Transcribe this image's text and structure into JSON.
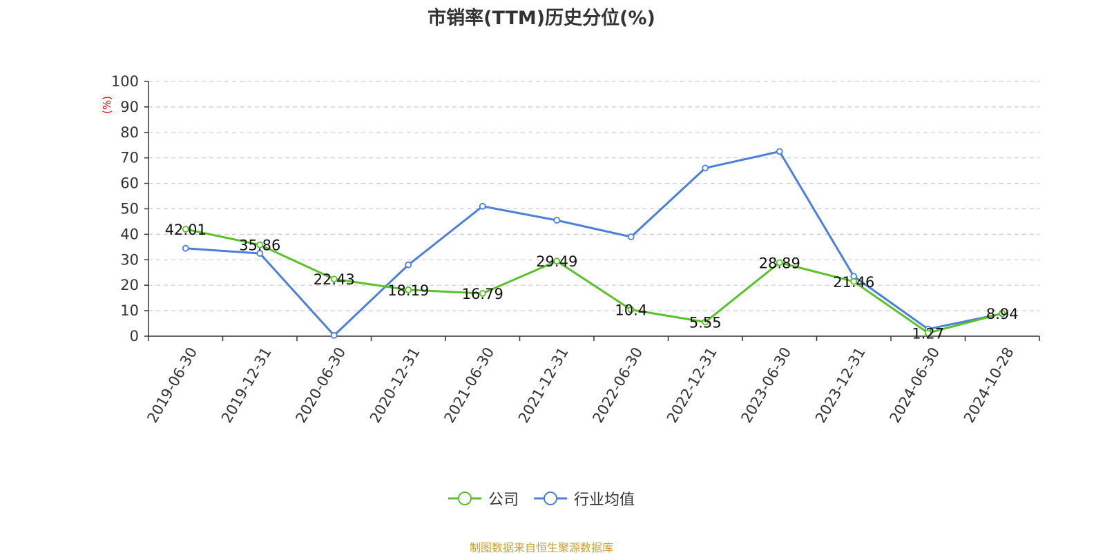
{
  "chart_data": {
    "type": "line",
    "title": "市销率(TTM)历史分位(%)",
    "ylabel": "(%)",
    "ylim": [
      0,
      100
    ],
    "yticks": [
      0,
      10,
      20,
      30,
      40,
      50,
      60,
      70,
      80,
      90,
      100
    ],
    "categories": [
      "2019-06-30",
      "2019-12-31",
      "2020-06-30",
      "2020-12-31",
      "2021-06-30",
      "2021-12-31",
      "2022-06-30",
      "2022-12-31",
      "2023-06-30",
      "2023-12-31",
      "2024-06-30",
      "2024-10-28"
    ],
    "grid": true,
    "legend_position": "bottom",
    "series": [
      {
        "name": "公司",
        "color": "#5ac229",
        "labels_shown": true,
        "values": [
          42.01,
          35.86,
          22.43,
          18.19,
          16.79,
          29.49,
          10.4,
          5.55,
          28.89,
          21.46,
          1.27,
          8.94
        ]
      },
      {
        "name": "行业均值",
        "color": "#4b7fdc",
        "labels_shown": false,
        "values": [
          34.5,
          32.5,
          0.3,
          28.0,
          51.0,
          45.5,
          39.0,
          66.0,
          72.5,
          23.5,
          2.8,
          8.8
        ]
      }
    ]
  },
  "footer": {
    "source": "制图数据来自恒生聚源数据库"
  }
}
